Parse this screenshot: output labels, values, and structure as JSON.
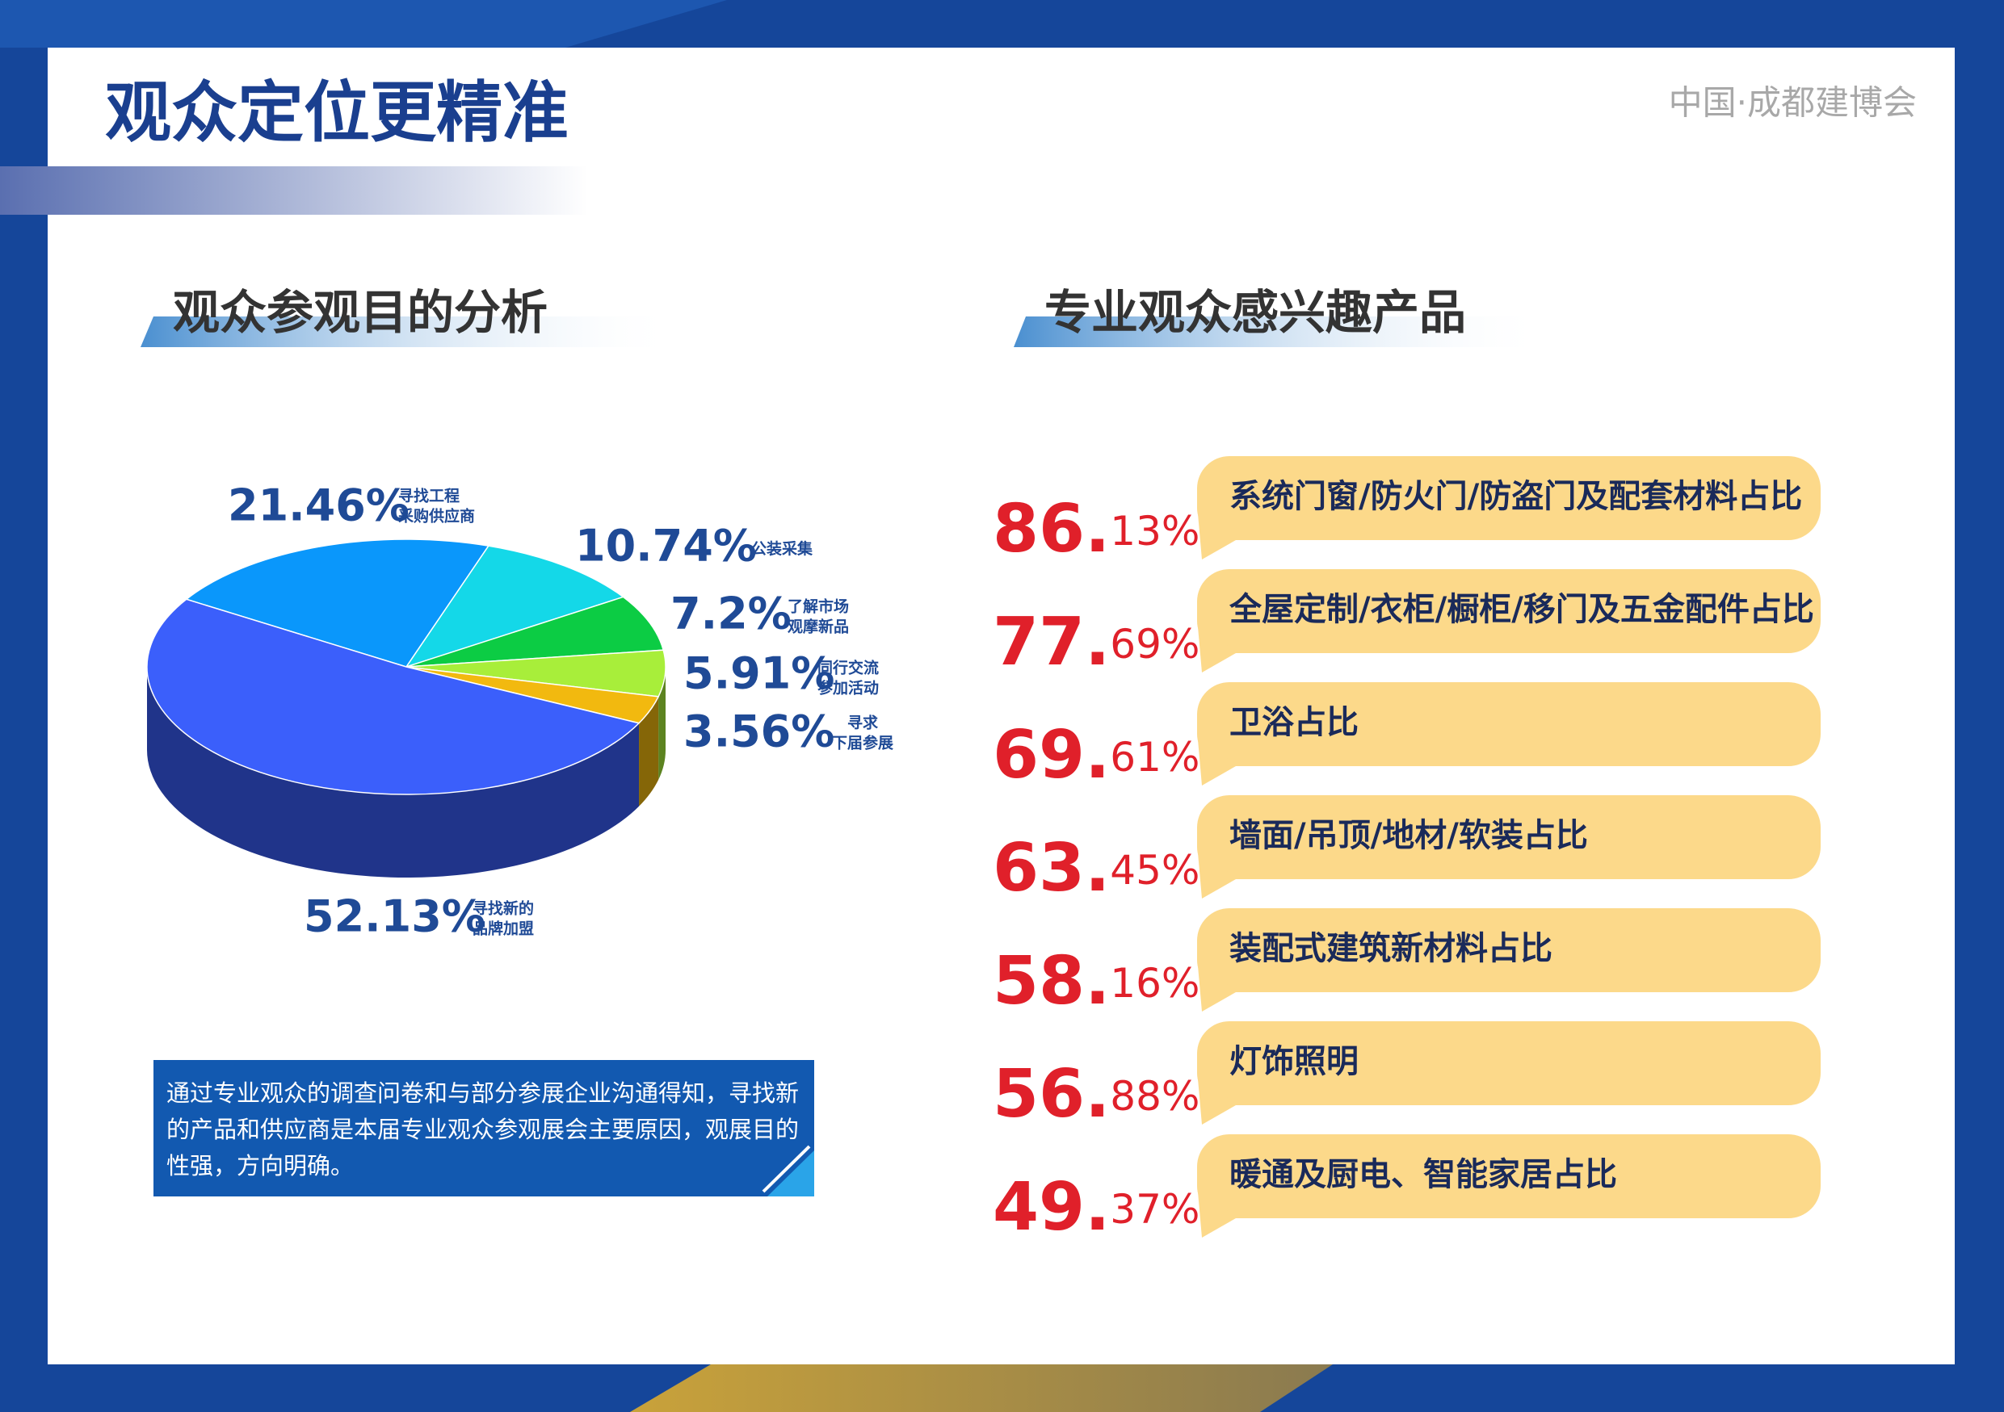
{
  "header": {
    "title": "观众定位更精准",
    "brand": "中国·成都建博会"
  },
  "chart_data": {
    "type": "pie",
    "title": "观众参观目的分析",
    "categories": [
      "寻找工程\n采购供应商",
      "公装采集",
      "了解市场\n观摩新品",
      "同行交流\n参加活动",
      "寻求\n下届参展",
      "寻找新的\n品牌加盟"
    ],
    "values": [
      21.46,
      10.74,
      7.2,
      5.91,
      3.56,
      52.13
    ],
    "value_labels": [
      "21.46%",
      "10.74%",
      "7.2%",
      "5.91%",
      "3.56%",
      "52.13%"
    ],
    "colors": [
      "#0a97fb",
      "#14d8e8",
      "#0ccc44",
      "#a8ee3a",
      "#f2b90f",
      "#3b5ffb"
    ]
  },
  "note": "通过专业观众的调查问卷和与部分参展企业沟通得知，寻找新的产品和供应商是本届专业观众参观展会主要原因，观展目的性强，方向明确。",
  "interest": {
    "title": "专业观众感兴趣产品",
    "items": [
      {
        "label": "系统门窗/防火门/防盗门及配套材料占比",
        "value": 86.13,
        "value_label": "86.13%"
      },
      {
        "label": "全屋定制/衣柜/橱柜/移门及五金配件占比",
        "value": 77.69,
        "value_label": "77.69%"
      },
      {
        "label": "卫浴占比",
        "value": 69.61,
        "value_label": "69.61%"
      },
      {
        "label": "墙面/吊顶/地材/软装占比",
        "value": 63.45,
        "value_label": "63.45%"
      },
      {
        "label": "装配式建筑新材料占比",
        "value": 58.16,
        "value_label": "58.16%"
      },
      {
        "label": "灯饰照明",
        "value": 56.88,
        "value_label": "56.88%"
      },
      {
        "label": "暖通及厨电、智能家居占比",
        "value": 49.37,
        "value_label": "49.37%"
      }
    ]
  }
}
